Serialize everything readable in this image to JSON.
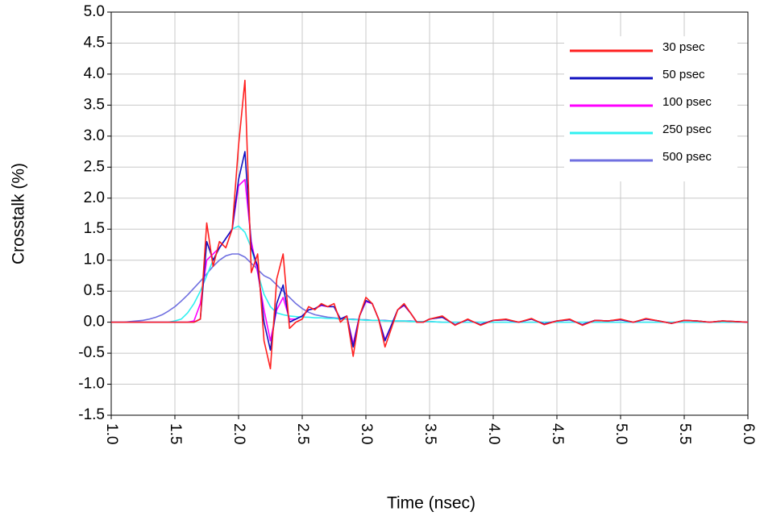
{
  "chart_data": {
    "type": "line",
    "xlabel": "Time (nsec)",
    "ylabel": "Crosstalk (%)",
    "xlim": [
      1.0,
      6.0
    ],
    "ylim": [
      -1.5,
      5.0
    ],
    "xticks": [
      {
        "value": 1,
        "label": "1.0"
      },
      1.5,
      {
        "value": 2,
        "label": "2.0"
      },
      2.5,
      {
        "value": 3,
        "label": "3.0"
      },
      3.5,
      {
        "value": 4,
        "label": "4.0"
      },
      4.5,
      {
        "value": 5,
        "label": "5.0"
      },
      5.5,
      {
        "value": 6,
        "label": "6.0"
      }
    ],
    "yticks": [
      -1.5,
      {
        "value": -1,
        "label": "-1.0"
      },
      -0.5,
      {
        "value": 0,
        "label": "0.0"
      },
      0.5,
      {
        "value": 1,
        "label": "1.0"
      },
      1.5,
      {
        "value": 2,
        "label": "2.0"
      },
      2.5,
      {
        "value": 3,
        "label": "3.0"
      },
      3.5,
      {
        "value": 4,
        "label": "4.0"
      },
      4.5,
      {
        "value": 5,
        "label": "5.0"
      }
    ],
    "grid": true,
    "legend": "upper right",
    "x": [
      1.0,
      1.05,
      1.1,
      1.15,
      1.2,
      1.25,
      1.3,
      1.35,
      1.4,
      1.45,
      1.5,
      1.55,
      1.6,
      1.65,
      1.7,
      1.75,
      1.8,
      1.85,
      1.9,
      1.95,
      2.0,
      2.05,
      2.1,
      2.15,
      2.2,
      2.25,
      2.3,
      2.35,
      2.4,
      2.45,
      2.5,
      2.55,
      2.6,
      2.65,
      2.7,
      2.75,
      2.8,
      2.85,
      2.9,
      2.95,
      3.0,
      3.05,
      3.1,
      3.15,
      3.2,
      3.25,
      3.3,
      3.35,
      3.4,
      3.45,
      3.5,
      3.6,
      3.7,
      3.8,
      3.9,
      4.0,
      4.1,
      4.2,
      4.3,
      4.4,
      4.5,
      4.6,
      4.7,
      4.8,
      4.9,
      5.0,
      5.1,
      5.2,
      5.3,
      5.4,
      5.5,
      5.6,
      5.7,
      5.8,
      5.9,
      6.0
    ],
    "series": [
      {
        "name": "30 psec",
        "color": "#ff2020",
        "values": [
          0,
          0,
          0,
          0,
          0,
          0,
          0,
          0,
          0,
          0,
          0,
          0,
          0,
          0,
          0.05,
          1.6,
          0.9,
          1.3,
          1.2,
          1.5,
          2.85,
          3.9,
          0.8,
          1.1,
          -0.3,
          -0.75,
          0.7,
          1.1,
          -0.1,
          0.0,
          0.05,
          0.25,
          0.2,
          0.3,
          0.25,
          0.3,
          0.0,
          0.1,
          -0.55,
          0.1,
          0.4,
          0.3,
          0.05,
          -0.4,
          -0.1,
          0.2,
          0.3,
          0.15,
          0.0,
          0.0,
          0.05,
          0.1,
          -0.05,
          0.05,
          -0.05,
          0.03,
          0.05,
          0.0,
          0.06,
          -0.04,
          0.02,
          0.05,
          -0.05,
          0.03,
          0.02,
          0.05,
          0.0,
          0.06,
          0.02,
          -0.02,
          0.03,
          0.02,
          0.0,
          0.02,
          0.01,
          0.0
        ]
      },
      {
        "name": "50 psec",
        "color": "#1010c0",
        "values": [
          0,
          0,
          0,
          0,
          0,
          0,
          0,
          0,
          0,
          0,
          0,
          0,
          0,
          0,
          0.05,
          1.3,
          1.0,
          1.2,
          1.35,
          1.5,
          2.3,
          2.75,
          1.2,
          0.9,
          0.0,
          -0.45,
          0.3,
          0.6,
          0.0,
          0.05,
          0.1,
          0.2,
          0.22,
          0.28,
          0.25,
          0.25,
          0.05,
          0.1,
          -0.4,
          0.1,
          0.35,
          0.3,
          0.05,
          -0.3,
          -0.05,
          0.2,
          0.28,
          0.15,
          0.0,
          0.0,
          0.05,
          0.08,
          -0.04,
          0.04,
          -0.04,
          0.03,
          0.04,
          0.0,
          0.05,
          -0.03,
          0.02,
          0.04,
          -0.04,
          0.03,
          0.02,
          0.04,
          0.0,
          0.05,
          0.02,
          -0.02,
          0.03,
          0.02,
          0.0,
          0.02,
          0.01,
          0.0
        ]
      },
      {
        "name": "100 psec",
        "color": "#ff00ff",
        "values": [
          0,
          0,
          0,
          0,
          0,
          0,
          0,
          0,
          0,
          0,
          0,
          0,
          0,
          0.02,
          0.3,
          1.0,
          1.1,
          1.2,
          1.35,
          1.5,
          2.2,
          2.3,
          1.3,
          0.8,
          0.2,
          -0.3,
          0.2,
          0.4,
          0.05,
          0.05,
          0.1,
          0.2,
          0.22,
          0.27,
          0.25,
          0.25,
          0.05,
          0.1,
          -0.35,
          0.1,
          0.33,
          0.3,
          0.05,
          -0.28,
          -0.05,
          0.2,
          0.27,
          0.15,
          0.0,
          0.0,
          0.05,
          0.08,
          -0.04,
          0.04,
          -0.04,
          0.03,
          0.04,
          0.0,
          0.05,
          -0.03,
          0.02,
          0.04,
          -0.04,
          0.03,
          0.02,
          0.04,
          0.0,
          0.05,
          0.02,
          -0.02,
          0.03,
          0.02,
          0.0,
          0.02,
          0.01,
          0.0
        ]
      },
      {
        "name": "250 psec",
        "color": "#30f0f0",
        "values": [
          0,
          0,
          0,
          0,
          0,
          0,
          0,
          0,
          0,
          0,
          0.02,
          0.05,
          0.15,
          0.3,
          0.5,
          0.75,
          1.0,
          1.2,
          1.35,
          1.5,
          1.55,
          1.45,
          1.2,
          0.8,
          0.45,
          0.25,
          0.15,
          0.12,
          0.1,
          0.09,
          0.08,
          0.08,
          0.07,
          0.07,
          0.06,
          0.06,
          0.05,
          0.05,
          0.04,
          0.04,
          0.03,
          0.03,
          0.03,
          0.02,
          0.02,
          0.02,
          0.02,
          0.01,
          0.01,
          0.01,
          0.01,
          0,
          0,
          0,
          0,
          0,
          0,
          0,
          0,
          0,
          0,
          0,
          0,
          0,
          0,
          0,
          0,
          0,
          0,
          0,
          0,
          0,
          0,
          0,
          0,
          0
        ]
      },
      {
        "name": "500 psec",
        "color": "#7070e0",
        "values": [
          0,
          0,
          0,
          0.01,
          0.02,
          0.03,
          0.05,
          0.08,
          0.12,
          0.18,
          0.25,
          0.34,
          0.44,
          0.55,
          0.66,
          0.78,
          0.9,
          1.0,
          1.07,
          1.1,
          1.1,
          1.05,
          0.95,
          0.85,
          0.75,
          0.7,
          0.6,
          0.5,
          0.4,
          0.3,
          0.22,
          0.16,
          0.12,
          0.1,
          0.08,
          0.07,
          0.06,
          0.05,
          0.05,
          0.04,
          0.04,
          0.03,
          0.03,
          0.03,
          0.02,
          0.02,
          0.02,
          0.02,
          0.01,
          0.01,
          0.01,
          0,
          0,
          0,
          0,
          0,
          0,
          0,
          0,
          0,
          0,
          0,
          0,
          0,
          0,
          0,
          0,
          0,
          0,
          0,
          0,
          0,
          0,
          0,
          0,
          0
        ]
      }
    ]
  }
}
